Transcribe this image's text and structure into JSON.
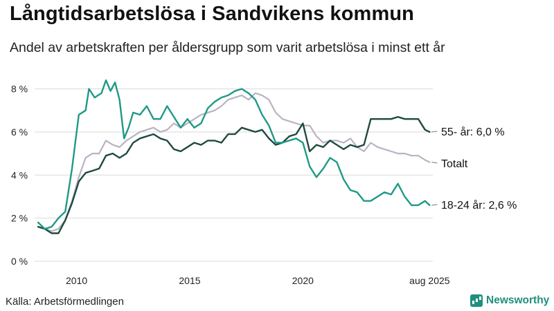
{
  "header": {
    "title": "Långtidsarbetslösa i Sandvikens kommun",
    "subtitle": "Andel av arbetskraften per åldersgrupp som varit arbetslösa i minst ett år"
  },
  "footer": {
    "source": "Källa: Arbetsförmedlingen",
    "brand": "Newsworthy"
  },
  "colors": {
    "series_55": "#1e4a3e",
    "series_total": "#b8b3c2",
    "series_1824": "#1f9986",
    "grid": "#d9d9d9",
    "brand": "#1f8f7f"
  },
  "chart_data": {
    "type": "line",
    "title": "Långtidsarbetslösa i Sandvikens kommun",
    "subtitle": "Andel av arbetskraften per åldersgrupp som varit arbetslösa i minst ett år",
    "xlabel": "",
    "ylabel": "",
    "x_range": [
      2008.3,
      2025.65
    ],
    "ylim": [
      0,
      8.5
    ],
    "y_ticks": [
      {
        "value": 0,
        "label": "0 %"
      },
      {
        "value": 2,
        "label": "2 %"
      },
      {
        "value": 4,
        "label": "4 %"
      },
      {
        "value": 6,
        "label": "6 %"
      },
      {
        "value": 8,
        "label": "8 %"
      }
    ],
    "x_ticks": [
      {
        "value": 2010,
        "label": "2010"
      },
      {
        "value": 2015,
        "label": "2015"
      },
      {
        "value": 2020,
        "label": "2020"
      },
      {
        "value": 2025.6,
        "label": "aug 2025"
      }
    ],
    "grid": "horizontal",
    "legend": "direct labels at line ends",
    "series": [
      {
        "name": "Totalt",
        "end_label": "Totalt",
        "x": [
          2008.3,
          2008.6,
          2008.9,
          2009.2,
          2009.5,
          2009.8,
          2010.1,
          2010.4,
          2010.7,
          2011.0,
          2011.3,
          2011.6,
          2011.9,
          2012.2,
          2012.5,
          2012.8,
          2013.1,
          2013.4,
          2013.7,
          2014.0,
          2014.3,
          2014.6,
          2014.9,
          2015.2,
          2015.5,
          2015.8,
          2016.1,
          2016.4,
          2016.7,
          2017.0,
          2017.3,
          2017.6,
          2017.9,
          2018.2,
          2018.5,
          2018.8,
          2019.1,
          2019.4,
          2019.7,
          2020.0,
          2020.3,
          2020.6,
          2020.9,
          2021.2,
          2021.5,
          2021.8,
          2022.1,
          2022.4,
          2022.7,
          2023.0,
          2023.3,
          2023.6,
          2023.9,
          2024.2,
          2024.5,
          2024.8,
          2025.1,
          2025.4,
          2025.6
        ],
        "y": [
          1.6,
          1.5,
          1.4,
          1.5,
          1.9,
          2.8,
          3.9,
          4.8,
          5.0,
          5.0,
          5.6,
          5.4,
          5.3,
          5.6,
          5.8,
          6.0,
          6.1,
          6.2,
          6.0,
          6.1,
          6.4,
          6.2,
          6.4,
          6.6,
          6.8,
          6.9,
          7.0,
          7.2,
          7.5,
          7.6,
          7.7,
          7.5,
          7.8,
          7.7,
          7.5,
          6.9,
          6.6,
          6.5,
          6.4,
          6.3,
          6.3,
          5.8,
          5.5,
          5.6,
          5.6,
          5.5,
          5.7,
          5.3,
          5.1,
          5.5,
          5.3,
          5.2,
          5.1,
          5.0,
          5.0,
          4.9,
          4.9,
          4.7,
          4.6
        ]
      },
      {
        "name": "55- år",
        "end_label": "55- år: 6,0 %",
        "x": [
          2008.3,
          2008.6,
          2008.9,
          2009.2,
          2009.5,
          2009.8,
          2010.1,
          2010.4,
          2010.7,
          2011.0,
          2011.3,
          2011.6,
          2011.9,
          2012.2,
          2012.5,
          2012.8,
          2013.1,
          2013.4,
          2013.7,
          2014.0,
          2014.3,
          2014.6,
          2014.9,
          2015.2,
          2015.5,
          2015.8,
          2016.1,
          2016.4,
          2016.7,
          2017.0,
          2017.3,
          2017.6,
          2017.9,
          2018.2,
          2018.5,
          2018.8,
          2019.1,
          2019.4,
          2019.7,
          2020.0,
          2020.3,
          2020.6,
          2020.9,
          2021.2,
          2021.5,
          2021.8,
          2022.1,
          2022.4,
          2022.7,
          2023.0,
          2023.3,
          2023.6,
          2023.9,
          2024.2,
          2024.5,
          2024.8,
          2025.1,
          2025.4,
          2025.6
        ],
        "y": [
          1.6,
          1.5,
          1.3,
          1.3,
          1.9,
          2.7,
          3.7,
          4.1,
          4.2,
          4.3,
          4.9,
          5.0,
          4.8,
          5.0,
          5.5,
          5.7,
          5.8,
          5.9,
          5.7,
          5.6,
          5.2,
          5.1,
          5.3,
          5.5,
          5.4,
          5.6,
          5.6,
          5.5,
          5.9,
          5.9,
          6.2,
          6.1,
          6.0,
          6.1,
          5.7,
          5.4,
          5.5,
          5.8,
          5.9,
          6.4,
          5.1,
          5.4,
          5.3,
          5.6,
          5.4,
          5.2,
          5.4,
          5.3,
          5.4,
          6.6,
          6.6,
          6.6,
          6.6,
          6.7,
          6.6,
          6.6,
          6.6,
          6.1,
          6.0
        ]
      },
      {
        "name": "18-24 år",
        "end_label": "18-24 år: 2,6 %",
        "x": [
          2008.3,
          2008.6,
          2008.9,
          2009.2,
          2009.5,
          2009.8,
          2010.1,
          2010.4,
          2010.55,
          2010.8,
          2011.1,
          2011.3,
          2011.5,
          2011.7,
          2011.9,
          2012.1,
          2012.3,
          2012.5,
          2012.8,
          2013.1,
          2013.4,
          2013.7,
          2014.0,
          2014.3,
          2014.6,
          2014.9,
          2015.2,
          2015.5,
          2015.8,
          2016.1,
          2016.4,
          2016.7,
          2017.0,
          2017.3,
          2017.6,
          2017.9,
          2018.2,
          2018.5,
          2018.8,
          2019.1,
          2019.4,
          2019.7,
          2020.0,
          2020.3,
          2020.6,
          2020.9,
          2021.2,
          2021.5,
          2021.8,
          2022.1,
          2022.4,
          2022.7,
          2023.0,
          2023.3,
          2023.6,
          2023.9,
          2024.2,
          2024.5,
          2024.8,
          2025.1,
          2025.4,
          2025.6
        ],
        "y": [
          1.8,
          1.5,
          1.6,
          2.0,
          2.3,
          4.3,
          6.8,
          7.0,
          8.0,
          7.6,
          7.8,
          8.4,
          7.9,
          8.3,
          7.5,
          5.7,
          6.2,
          6.9,
          6.8,
          7.2,
          6.6,
          6.6,
          7.2,
          6.7,
          6.2,
          6.6,
          6.2,
          6.4,
          7.1,
          7.4,
          7.6,
          7.7,
          7.9,
          8.0,
          7.8,
          7.5,
          6.8,
          6.3,
          5.5,
          5.5,
          5.6,
          5.7,
          5.5,
          4.4,
          3.9,
          4.3,
          4.8,
          4.6,
          3.8,
          3.3,
          3.2,
          2.8,
          2.8,
          3.0,
          3.2,
          3.1,
          3.6,
          3.0,
          2.6,
          2.6,
          2.8,
          2.6
        ]
      }
    ]
  }
}
